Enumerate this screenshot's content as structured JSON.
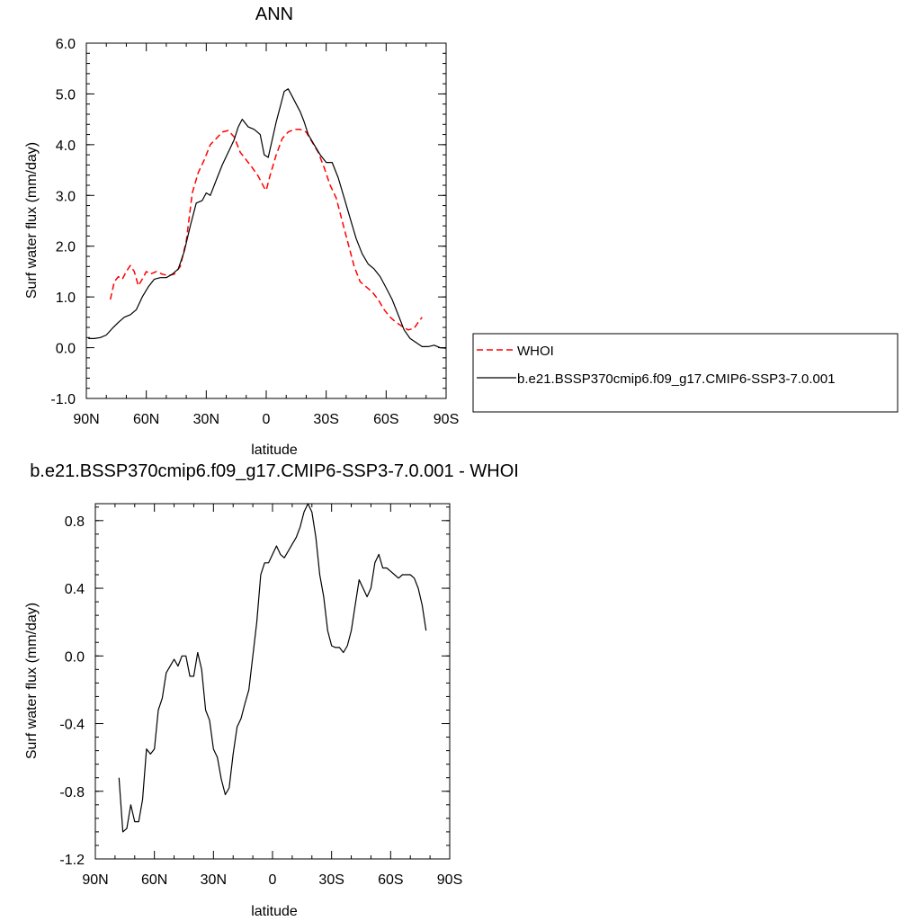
{
  "chart_data": [
    {
      "type": "line",
      "title": "ANN",
      "xlabel": "latitude",
      "ylabel": "Surf water flux (mm/day)",
      "x_ticks": [
        "90N",
        "60N",
        "30N",
        "0",
        "30S",
        "60S",
        "90S"
      ],
      "y_ticks": [
        "6.0",
        "5.0",
        "4.0",
        "3.0",
        "2.0",
        "1.0",
        "0.0",
        "-1.0"
      ],
      "xlim": [
        -90,
        90
      ],
      "ylim": [
        -1.0,
        6.0
      ],
      "legend": {
        "placement": "right",
        "entries": [
          "WHOI",
          "b.e21.BSSP370cmip6.f09_g17.CMIP6-SSP3-7.0.001"
        ]
      },
      "series": [
        {
          "name": "WHOI",
          "color": "#ff0000",
          "dash": "dashed",
          "x": [
            -78,
            -76,
            -74,
            -72,
            -70,
            -68,
            -66,
            -64,
            -62,
            -60,
            -58,
            -55,
            -52,
            -49,
            -46,
            -43,
            -40,
            -37,
            -34,
            -31,
            -28,
            -25,
            -22,
            -19,
            -16,
            -13,
            -10,
            -7,
            -4,
            -1,
            0,
            2,
            5,
            8,
            11,
            14,
            17,
            20,
            23,
            26,
            29,
            32,
            35,
            38,
            41,
            44,
            47,
            50,
            53,
            56,
            59,
            62,
            65,
            68,
            71,
            74,
            76,
            78
          ],
          "values": [
            0.95,
            1.3,
            1.4,
            1.35,
            1.5,
            1.62,
            1.5,
            1.22,
            1.35,
            1.5,
            1.45,
            1.5,
            1.45,
            1.42,
            1.45,
            1.6,
            2.1,
            3.05,
            3.45,
            3.7,
            4.0,
            4.12,
            4.25,
            4.28,
            4.15,
            3.85,
            3.7,
            3.55,
            3.38,
            3.15,
            3.1,
            3.4,
            3.8,
            4.12,
            4.25,
            4.3,
            4.3,
            4.25,
            4.05,
            3.85,
            3.55,
            3.2,
            2.95,
            2.5,
            2.05,
            1.6,
            1.3,
            1.2,
            1.1,
            0.95,
            0.75,
            0.6,
            0.5,
            0.42,
            0.35,
            0.38,
            0.5,
            0.6
          ]
        },
        {
          "name": "b.e21.BSSP370cmip6.f09_g17.CMIP6-SSP3-7.0.001",
          "color": "#000000",
          "dash": "solid",
          "x": [
            -89,
            -86,
            -83,
            -80,
            -77,
            -74,
            -71,
            -68,
            -65,
            -62,
            -59,
            -56,
            -53,
            -50,
            -47,
            -44,
            -41,
            -38,
            -35,
            -32,
            -30,
            -28,
            -25,
            -22,
            -19,
            -16,
            -14,
            -12,
            -9,
            -6,
            -3,
            -1,
            1,
            3,
            5,
            7,
            9,
            11,
            13,
            15,
            17,
            19,
            21,
            24,
            27,
            30,
            33,
            36,
            39,
            42,
            45,
            48,
            51,
            54,
            57,
            60,
            63,
            66,
            69,
            72,
            75,
            78,
            81,
            84,
            87,
            90
          ],
          "values": [
            0.18,
            0.18,
            0.2,
            0.25,
            0.38,
            0.5,
            0.6,
            0.65,
            0.75,
            1.0,
            1.2,
            1.35,
            1.38,
            1.38,
            1.45,
            1.55,
            1.9,
            2.4,
            2.85,
            2.9,
            3.05,
            3.0,
            3.3,
            3.6,
            3.85,
            4.1,
            4.35,
            4.5,
            4.35,
            4.3,
            4.2,
            3.8,
            3.75,
            4.1,
            4.45,
            4.75,
            5.05,
            5.1,
            4.95,
            4.8,
            4.65,
            4.45,
            4.2,
            4.0,
            3.8,
            3.65,
            3.65,
            3.35,
            2.95,
            2.55,
            2.15,
            1.85,
            1.65,
            1.55,
            1.4,
            1.18,
            0.95,
            0.65,
            0.35,
            0.18,
            0.1,
            0.02,
            0.02,
            0.05,
            0.0,
            -0.01
          ]
        }
      ]
    },
    {
      "type": "line",
      "title": "b.e21.BSSP370cmip6.f09_g17.CMIP6-SSP3-7.0.001 - WHOI",
      "xlabel": "latitude",
      "ylabel": "Surf water flux (mm/day)",
      "x_ticks": [
        "90N",
        "60N",
        "30N",
        "0",
        "30S",
        "60S",
        "90S"
      ],
      "y_ticks": [
        "0.8",
        "0.4",
        "0.0",
        "-0.4",
        "-0.8",
        "-1.2"
      ],
      "xlim": [
        -90,
        90
      ],
      "ylim": [
        -1.2,
        0.9
      ],
      "series": [
        {
          "color": "#000000",
          "dash": "solid",
          "x": [
            -78,
            -76,
            -74,
            -72,
            -70,
            -68,
            -66,
            -64,
            -62,
            -60,
            -58,
            -56,
            -54,
            -52,
            -50,
            -48,
            -46,
            -44,
            -42,
            -40,
            -38,
            -36,
            -34,
            -32,
            -30,
            -28,
            -26,
            -24,
            -22,
            -20,
            -18,
            -16,
            -14,
            -12,
            -10,
            -8,
            -6,
            -4,
            -2,
            0,
            2,
            4,
            6,
            8,
            10,
            12,
            14,
            16,
            18,
            20,
            22,
            24,
            26,
            28,
            30,
            32,
            34,
            36,
            38,
            40,
            42,
            44,
            46,
            48,
            50,
            52,
            54,
            56,
            58,
            60,
            62,
            64,
            66,
            68,
            70,
            72,
            74,
            76,
            78
          ],
          "values": [
            -0.72,
            -1.04,
            -1.02,
            -0.88,
            -0.98,
            -0.98,
            -0.85,
            -0.55,
            -0.58,
            -0.55,
            -0.32,
            -0.25,
            -0.1,
            -0.06,
            -0.02,
            -0.06,
            0.0,
            0.0,
            -0.12,
            -0.12,
            0.02,
            -0.08,
            -0.32,
            -0.38,
            -0.55,
            -0.6,
            -0.73,
            -0.82,
            -0.78,
            -0.58,
            -0.42,
            -0.37,
            -0.28,
            -0.2,
            0.0,
            0.2,
            0.48,
            0.55,
            0.55,
            0.6,
            0.65,
            0.6,
            0.58,
            0.62,
            0.66,
            0.7,
            0.76,
            0.85,
            0.9,
            0.85,
            0.7,
            0.48,
            0.35,
            0.15,
            0.06,
            0.05,
            0.05,
            0.02,
            0.06,
            0.15,
            0.3,
            0.45,
            0.4,
            0.35,
            0.4,
            0.55,
            0.6,
            0.52,
            0.52,
            0.5,
            0.48,
            0.46,
            0.48,
            0.48,
            0.48,
            0.46,
            0.4,
            0.3,
            0.15
          ]
        }
      ]
    }
  ]
}
